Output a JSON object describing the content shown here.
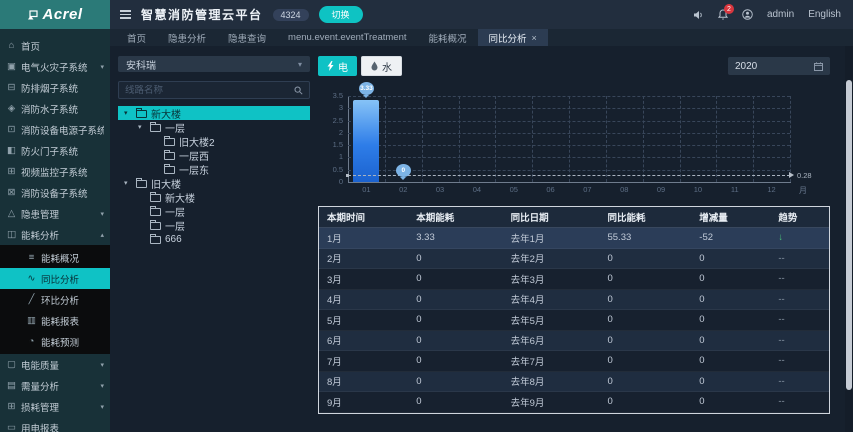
{
  "header": {
    "logo_text": "Acrel",
    "app_title": "智慧消防管理云平台",
    "badge": "4324",
    "switch_button": "切换",
    "notification_count": "2",
    "username": "admin",
    "language": "English"
  },
  "tabs": [
    {
      "label": "首页",
      "active": false,
      "closable": false
    },
    {
      "label": "隐患分析",
      "active": false,
      "closable": false
    },
    {
      "label": "隐患查询",
      "active": false,
      "closable": false
    },
    {
      "label": "menu.event.eventTreatment",
      "active": false,
      "closable": false
    },
    {
      "label": "能耗概况",
      "active": false,
      "closable": false
    },
    {
      "label": "同比分析",
      "active": true,
      "closable": true
    }
  ],
  "sidebar": [
    {
      "key": "home",
      "label": "首页",
      "icon": "home"
    },
    {
      "key": "electric-fire",
      "label": "电气火灾子系统",
      "icon": "electric-fire",
      "chevron": "down"
    },
    {
      "key": "smoke-control",
      "label": "防排烟子系统",
      "icon": "smoke-control"
    },
    {
      "key": "fire-water",
      "label": "消防水子系统",
      "icon": "fire-water"
    },
    {
      "key": "fire-equipment-power",
      "label": "消防设备电源子系统",
      "icon": "fire-equipment-power"
    },
    {
      "key": "fire-door",
      "label": "防火门子系统",
      "icon": "fire-door"
    },
    {
      "key": "video-surveillance",
      "label": "视频监控子系统",
      "icon": "video-surveillance"
    },
    {
      "key": "fire-equipment",
      "label": "消防设备子系统",
      "icon": "fire-equipment"
    },
    {
      "key": "hazard-management",
      "label": "隐患管理",
      "icon": "hazard-management",
      "chevron": "down"
    },
    {
      "key": "energy-analysis",
      "label": "能耗分析",
      "icon": "energy-analysis",
      "chevron": "up",
      "expanded": true,
      "children": [
        {
          "key": "energy-overview",
          "label": "能耗概况",
          "icon": "energy-overview",
          "active": false
        },
        {
          "key": "yoy-analysis",
          "label": "同比分析",
          "icon": "yoy-analysis",
          "active": true
        },
        {
          "key": "mom-analysis",
          "label": "环比分析",
          "icon": "mom-analysis",
          "active": false
        },
        {
          "key": "energy-report",
          "label": "能耗报表",
          "icon": "energy-report",
          "active": false
        },
        {
          "key": "energy-forecast",
          "label": "能耗预测",
          "icon": "energy-forecast",
          "active": false
        }
      ]
    },
    {
      "key": "power-quality",
      "label": "电能质量",
      "icon": "power-quality",
      "chevron": "down"
    },
    {
      "key": "demand-analysis",
      "label": "需量分析",
      "icon": "demand-analysis",
      "chevron": "down"
    },
    {
      "key": "loss-management",
      "label": "损耗管理",
      "icon": "loss-management",
      "chevron": "down"
    },
    {
      "key": "electricity-report",
      "label": "用电报表",
      "icon": "electricity-report"
    }
  ],
  "tree_panel": {
    "org_select": "安科瑞",
    "search_placeholder": "线路名称",
    "nodes": [
      {
        "level": 0,
        "label": "新大楼",
        "caret": true,
        "folder": "open",
        "selected": true
      },
      {
        "level": 1,
        "label": "一层",
        "caret": true,
        "folder": "open",
        "selected": false
      },
      {
        "level": 2,
        "label": "旧大楼2",
        "caret": false,
        "folder": "closed",
        "selected": false
      },
      {
        "level": 2,
        "label": "一层西",
        "caret": false,
        "folder": "closed",
        "selected": false
      },
      {
        "level": 2,
        "label": "一层东",
        "caret": false,
        "folder": "open",
        "selected": false
      },
      {
        "level": 0,
        "label": "旧大楼",
        "caret": true,
        "folder": "open",
        "selected": false
      },
      {
        "level": 1,
        "label": "新大楼",
        "caret": false,
        "folder": "open",
        "selected": false
      },
      {
        "level": 1,
        "label": "一层",
        "caret": false,
        "folder": "closed",
        "selected": false
      },
      {
        "level": 1,
        "label": "一层",
        "caret": false,
        "folder": "closed",
        "selected": false
      },
      {
        "level": 1,
        "label": "666",
        "caret": false,
        "folder": "closed",
        "selected": false
      }
    ]
  },
  "toolbar": {
    "electric": "电",
    "water": "水",
    "year": "2020"
  },
  "chart_data": {
    "type": "bar",
    "title": "",
    "categories": [
      "01",
      "02",
      "03",
      "04",
      "05",
      "06",
      "07",
      "08",
      "09",
      "10",
      "11",
      "12"
    ],
    "series": [
      {
        "name": "本期能耗",
        "values": [
          3.33,
          0,
          null,
          null,
          null,
          null,
          null,
          null,
          null,
          null,
          null,
          null
        ]
      }
    ],
    "point_labels": [
      {
        "category_index": 0,
        "label": "3.33"
      },
      {
        "category_index": 1,
        "label": "0"
      }
    ],
    "ylim": [
      0,
      3.5
    ],
    "yticks": [
      0,
      0.5,
      1,
      1.5,
      2,
      2.5,
      3,
      3.5
    ],
    "xaxis_name": "月",
    "average_line": {
      "value": 0.28,
      "label": "0.28"
    },
    "grid": "dashed",
    "bar_colors": {
      "top": "#86c3f7",
      "bottom": "#1b62cf"
    },
    "legend_position": "none"
  },
  "table": {
    "headers": [
      "本期时间",
      "本期能耗",
      "同比日期",
      "同比能耗",
      "增减量",
      "趋势"
    ],
    "rows": [
      {
        "cells": [
          "1月",
          "3.33",
          "去年1月",
          "55.33",
          "-52"
        ],
        "trend": "↓",
        "highlight": true
      },
      {
        "cells": [
          "2月",
          "0",
          "去年2月",
          "0",
          "0"
        ],
        "trend": "--",
        "highlight": false
      },
      {
        "cells": [
          "3月",
          "0",
          "去年3月",
          "0",
          "0"
        ],
        "trend": "--",
        "highlight": false
      },
      {
        "cells": [
          "4月",
          "0",
          "去年4月",
          "0",
          "0"
        ],
        "trend": "--",
        "highlight": false
      },
      {
        "cells": [
          "5月",
          "0",
          "去年5月",
          "0",
          "0"
        ],
        "trend": "--",
        "highlight": false
      },
      {
        "cells": [
          "6月",
          "0",
          "去年6月",
          "0",
          "0"
        ],
        "trend": "--",
        "highlight": false
      },
      {
        "cells": [
          "7月",
          "0",
          "去年7月",
          "0",
          "0"
        ],
        "trend": "--",
        "highlight": false
      },
      {
        "cells": [
          "8月",
          "0",
          "去年8月",
          "0",
          "0"
        ],
        "trend": "--",
        "highlight": false
      },
      {
        "cells": [
          "9月",
          "0",
          "去年9月",
          "0",
          "0"
        ],
        "trend": "--",
        "highlight": false
      }
    ]
  }
}
